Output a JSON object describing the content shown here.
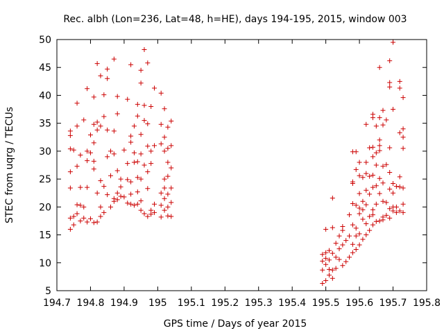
{
  "chart_data": {
    "type": "scatter",
    "title": "Rec. albh (Lon=236, Lat=48, h=HE), days 194-195, 2015, window 003",
    "xlabel": "GPS time / Days of year 2015",
    "ylabel": "STEC from uqrg / TECUs",
    "xlim": [
      194.7,
      195.8
    ],
    "ylim": [
      5,
      50
    ],
    "xticks": [
      "194.7",
      "194.8",
      "194.9",
      "195",
      "195.1",
      "195.2",
      "195.3",
      "195.4",
      "195.5",
      "195.6",
      "195.7",
      "195.8"
    ],
    "yticks": [
      "5",
      "10",
      "15",
      "20",
      "25",
      "30",
      "35",
      "40",
      "45",
      "50"
    ],
    "grid": false,
    "legend": "none",
    "marker_color": "#cc0000",
    "series": [
      {
        "points": [
          [
            194.74,
            16.0
          ],
          [
            194.74,
            18.0
          ],
          [
            194.74,
            23.4
          ],
          [
            194.74,
            26.3
          ],
          [
            194.74,
            30.4
          ],
          [
            194.74,
            32.8
          ],
          [
            194.74,
            33.6
          ],
          [
            194.75,
            16.8
          ],
          [
            194.75,
            18.3
          ],
          [
            194.75,
            30.2
          ],
          [
            194.76,
            18.8
          ],
          [
            194.76,
            20.4
          ],
          [
            194.76,
            27.3
          ],
          [
            194.76,
            34.5
          ],
          [
            194.76,
            38.6
          ],
          [
            194.77,
            17.5
          ],
          [
            194.77,
            20.3
          ],
          [
            194.77,
            23.5
          ],
          [
            194.77,
            29.3
          ],
          [
            194.78,
            18.0
          ],
          [
            194.78,
            20.0
          ],
          [
            194.78,
            35.6
          ],
          [
            194.79,
            17.3
          ],
          [
            194.79,
            23.5
          ],
          [
            194.79,
            28.3
          ],
          [
            194.79,
            30.0
          ],
          [
            194.79,
            41.2
          ],
          [
            194.8,
            17.9
          ],
          [
            194.8,
            29.7
          ],
          [
            194.8,
            32.9
          ],
          [
            194.81,
            17.2
          ],
          [
            194.81,
            26.8
          ],
          [
            194.81,
            28.2
          ],
          [
            194.81,
            31.5
          ],
          [
            194.81,
            34.8
          ],
          [
            194.81,
            39.7
          ],
          [
            194.82,
            17.3
          ],
          [
            194.82,
            22.5
          ],
          [
            194.82,
            33.8
          ],
          [
            194.82,
            35.2
          ],
          [
            194.82,
            45.7
          ],
          [
            194.83,
            18.3
          ],
          [
            194.83,
            20.0
          ],
          [
            194.83,
            24.7
          ],
          [
            194.83,
            34.5
          ],
          [
            194.83,
            43.5
          ],
          [
            194.84,
            19.0
          ],
          [
            194.84,
            23.7
          ],
          [
            194.84,
            36.2
          ],
          [
            194.84,
            40.1
          ],
          [
            194.85,
            22.2
          ],
          [
            194.85,
            29.0
          ],
          [
            194.85,
            33.8
          ],
          [
            194.85,
            43.0
          ],
          [
            194.85,
            44.7
          ],
          [
            194.86,
            20.0
          ],
          [
            194.86,
            25.6
          ],
          [
            194.86,
            30.0
          ],
          [
            194.87,
            21.5
          ],
          [
            194.87,
            21.0
          ],
          [
            194.87,
            29.5
          ],
          [
            194.87,
            33.6
          ],
          [
            194.87,
            46.5
          ],
          [
            194.88,
            21.3
          ],
          [
            194.88,
            22.5
          ],
          [
            194.88,
            26.5
          ],
          [
            194.88,
            36.7
          ],
          [
            194.88,
            39.8
          ],
          [
            194.89,
            21.9
          ],
          [
            194.89,
            23.6
          ],
          [
            194.89,
            25.0
          ],
          [
            194.9,
            21.8
          ],
          [
            194.9,
            30.2
          ],
          [
            194.91,
            20.7
          ],
          [
            194.91,
            24.9
          ],
          [
            194.91,
            27.8
          ],
          [
            194.91,
            39.3
          ],
          [
            194.92,
            20.5
          ],
          [
            194.92,
            22.3
          ],
          [
            194.92,
            24.5
          ],
          [
            194.92,
            31.6
          ],
          [
            194.92,
            32.7
          ],
          [
            194.92,
            45.5
          ],
          [
            194.93,
            20.3
          ],
          [
            194.93,
            28.0
          ],
          [
            194.93,
            29.7
          ],
          [
            194.93,
            34.5
          ],
          [
            194.94,
            20.5
          ],
          [
            194.94,
            22.7
          ],
          [
            194.94,
            25.3
          ],
          [
            194.94,
            28.1
          ],
          [
            194.94,
            36.3
          ],
          [
            194.94,
            38.4
          ],
          [
            194.95,
            19.4
          ],
          [
            194.95,
            21.1
          ],
          [
            194.95,
            25.0
          ],
          [
            194.95,
            29.5
          ],
          [
            194.95,
            33.0
          ],
          [
            194.95,
            42.2
          ],
          [
            194.95,
            44.5
          ],
          [
            194.96,
            18.8
          ],
          [
            194.96,
            27.5
          ],
          [
            194.96,
            35.5
          ],
          [
            194.96,
            38.2
          ],
          [
            194.96,
            48.2
          ],
          [
            194.97,
            18.3
          ],
          [
            194.97,
            23.3
          ],
          [
            194.97,
            26.3
          ],
          [
            194.97,
            30.9
          ],
          [
            194.97,
            34.9
          ],
          [
            194.97,
            45.8
          ],
          [
            194.98,
            18.7
          ],
          [
            194.98,
            19.4
          ],
          [
            194.98,
            27.8
          ],
          [
            194.98,
            30.0
          ],
          [
            194.98,
            38.0
          ],
          [
            194.99,
            19.0
          ],
          [
            194.99,
            20.5
          ],
          [
            194.99,
            31.0
          ],
          [
            194.99,
            41.3
          ],
          [
            195.01,
            18.2
          ],
          [
            195.01,
            20.3
          ],
          [
            195.01,
            22.5
          ],
          [
            195.01,
            31.3
          ],
          [
            195.01,
            34.8
          ],
          [
            195.01,
            40.4
          ],
          [
            195.02,
            19.4
          ],
          [
            195.02,
            21.5
          ],
          [
            195.02,
            23.4
          ],
          [
            195.02,
            25.0
          ],
          [
            195.02,
            30.0
          ],
          [
            195.02,
            32.5
          ],
          [
            195.02,
            37.6
          ],
          [
            195.03,
            18.4
          ],
          [
            195.03,
            20.0
          ],
          [
            195.03,
            22.3
          ],
          [
            195.03,
            25.5
          ],
          [
            195.03,
            28.0
          ],
          [
            195.03,
            30.5
          ],
          [
            195.03,
            34.3
          ],
          [
            195.04,
            18.3
          ],
          [
            195.04,
            20.8
          ],
          [
            195.04,
            23.4
          ],
          [
            195.04,
            27.0
          ],
          [
            195.04,
            31.0
          ],
          [
            195.04,
            35.4
          ]
        ]
      },
      {
        "points": [
          [
            195.49,
            6.3
          ],
          [
            195.49,
            8.7
          ],
          [
            195.49,
            10.3
          ],
          [
            195.49,
            11.5
          ],
          [
            195.5,
            6.8
          ],
          [
            195.5,
            9.7
          ],
          [
            195.5,
            10.8
          ],
          [
            195.5,
            11.8
          ],
          [
            195.5,
            16.0
          ],
          [
            195.51,
            7.8
          ],
          [
            195.51,
            8.8
          ],
          [
            195.51,
            10.5
          ],
          [
            195.51,
            12.2
          ],
          [
            195.52,
            7.2
          ],
          [
            195.52,
            8.7
          ],
          [
            195.52,
            11.7
          ],
          [
            195.52,
            16.3
          ],
          [
            195.52,
            21.6
          ],
          [
            195.53,
            9.0
          ],
          [
            195.53,
            11.0
          ],
          [
            195.53,
            13.5
          ],
          [
            195.54,
            10.6
          ],
          [
            195.54,
            12.5
          ],
          [
            195.54,
            14.8
          ],
          [
            195.55,
            9.5
          ],
          [
            195.55,
            13.2
          ],
          [
            195.55,
            15.8
          ],
          [
            195.55,
            16.5
          ],
          [
            195.56,
            10.2
          ],
          [
            195.56,
            14.0
          ],
          [
            195.57,
            11.0
          ],
          [
            195.57,
            14.8
          ],
          [
            195.57,
            18.6
          ],
          [
            195.58,
            11.8
          ],
          [
            195.58,
            13.3
          ],
          [
            195.58,
            16.8
          ],
          [
            195.58,
            20.6
          ],
          [
            195.58,
            24.2
          ],
          [
            195.58,
            24.5
          ],
          [
            195.58,
            29.9
          ],
          [
            195.59,
            12.4
          ],
          [
            195.59,
            14.8
          ],
          [
            195.59,
            16.2
          ],
          [
            195.59,
            20.3
          ],
          [
            195.59,
            26.7
          ],
          [
            195.59,
            29.9
          ],
          [
            195.6,
            13.2
          ],
          [
            195.6,
            15.2
          ],
          [
            195.6,
            18.8
          ],
          [
            195.6,
            19.8
          ],
          [
            195.6,
            22.4
          ],
          [
            195.6,
            25.6
          ],
          [
            195.6,
            28.0
          ],
          [
            195.61,
            14.2
          ],
          [
            195.61,
            17.8
          ],
          [
            195.61,
            19.5
          ],
          [
            195.61,
            21.0
          ],
          [
            195.61,
            25.3
          ],
          [
            195.62,
            15.0
          ],
          [
            195.62,
            17.0
          ],
          [
            195.62,
            20.4
          ],
          [
            195.62,
            23.0
          ],
          [
            195.62,
            26.0
          ],
          [
            195.62,
            28.0
          ],
          [
            195.62,
            34.8
          ],
          [
            195.63,
            15.8
          ],
          [
            195.63,
            18.3
          ],
          [
            195.63,
            22.3
          ],
          [
            195.63,
            25.5
          ],
          [
            195.63,
            30.6
          ],
          [
            195.64,
            16.8
          ],
          [
            195.64,
            18.6
          ],
          [
            195.64,
            19.5
          ],
          [
            195.64,
            23.5
          ],
          [
            195.64,
            25.7
          ],
          [
            195.64,
            29.0
          ],
          [
            195.64,
            30.7
          ],
          [
            195.64,
            36.0
          ],
          [
            195.64,
            36.6
          ],
          [
            195.65,
            17.4
          ],
          [
            195.65,
            20.5
          ],
          [
            195.65,
            23.8
          ],
          [
            195.65,
            27.5
          ],
          [
            195.65,
            29.7
          ],
          [
            195.65,
            34.5
          ],
          [
            195.66,
            17.5
          ],
          [
            195.66,
            22.4
          ],
          [
            195.66,
            25.1
          ],
          [
            195.66,
            30.1
          ],
          [
            195.66,
            31.0
          ],
          [
            195.66,
            32.0
          ],
          [
            195.66,
            36.0
          ],
          [
            195.66,
            45.0
          ],
          [
            195.67,
            17.7
          ],
          [
            195.67,
            18.2
          ],
          [
            195.67,
            21.0
          ],
          [
            195.67,
            24.3
          ],
          [
            195.67,
            27.3
          ],
          [
            195.67,
            34.7
          ],
          [
            195.67,
            37.3
          ],
          [
            195.68,
            18.5
          ],
          [
            195.68,
            20.8
          ],
          [
            195.68,
            27.6
          ],
          [
            195.68,
            35.6
          ],
          [
            195.69,
            18.0
          ],
          [
            195.69,
            19.7
          ],
          [
            195.69,
            23.2
          ],
          [
            195.69,
            26.2
          ],
          [
            195.69,
            30.6
          ],
          [
            195.69,
            41.5
          ],
          [
            195.69,
            42.3
          ],
          [
            195.69,
            46.2
          ],
          [
            195.7,
            19.3
          ],
          [
            195.7,
            20.0
          ],
          [
            195.7,
            22.5
          ],
          [
            195.7,
            24.2
          ],
          [
            195.7,
            37.5
          ],
          [
            195.7,
            49.5
          ],
          [
            195.71,
            19.0
          ],
          [
            195.71,
            20.0
          ],
          [
            195.71,
            23.7
          ],
          [
            195.72,
            19.3
          ],
          [
            195.72,
            23.6
          ],
          [
            195.72,
            25.4
          ],
          [
            195.72,
            33.3
          ],
          [
            195.72,
            41.3
          ],
          [
            195.72,
            42.5
          ],
          [
            195.73,
            19.0
          ],
          [
            195.73,
            20.5
          ],
          [
            195.73,
            23.4
          ],
          [
            195.73,
            30.5
          ],
          [
            195.73,
            32.5
          ],
          [
            195.73,
            34.0
          ],
          [
            195.73,
            39.6
          ]
        ]
      }
    ]
  }
}
